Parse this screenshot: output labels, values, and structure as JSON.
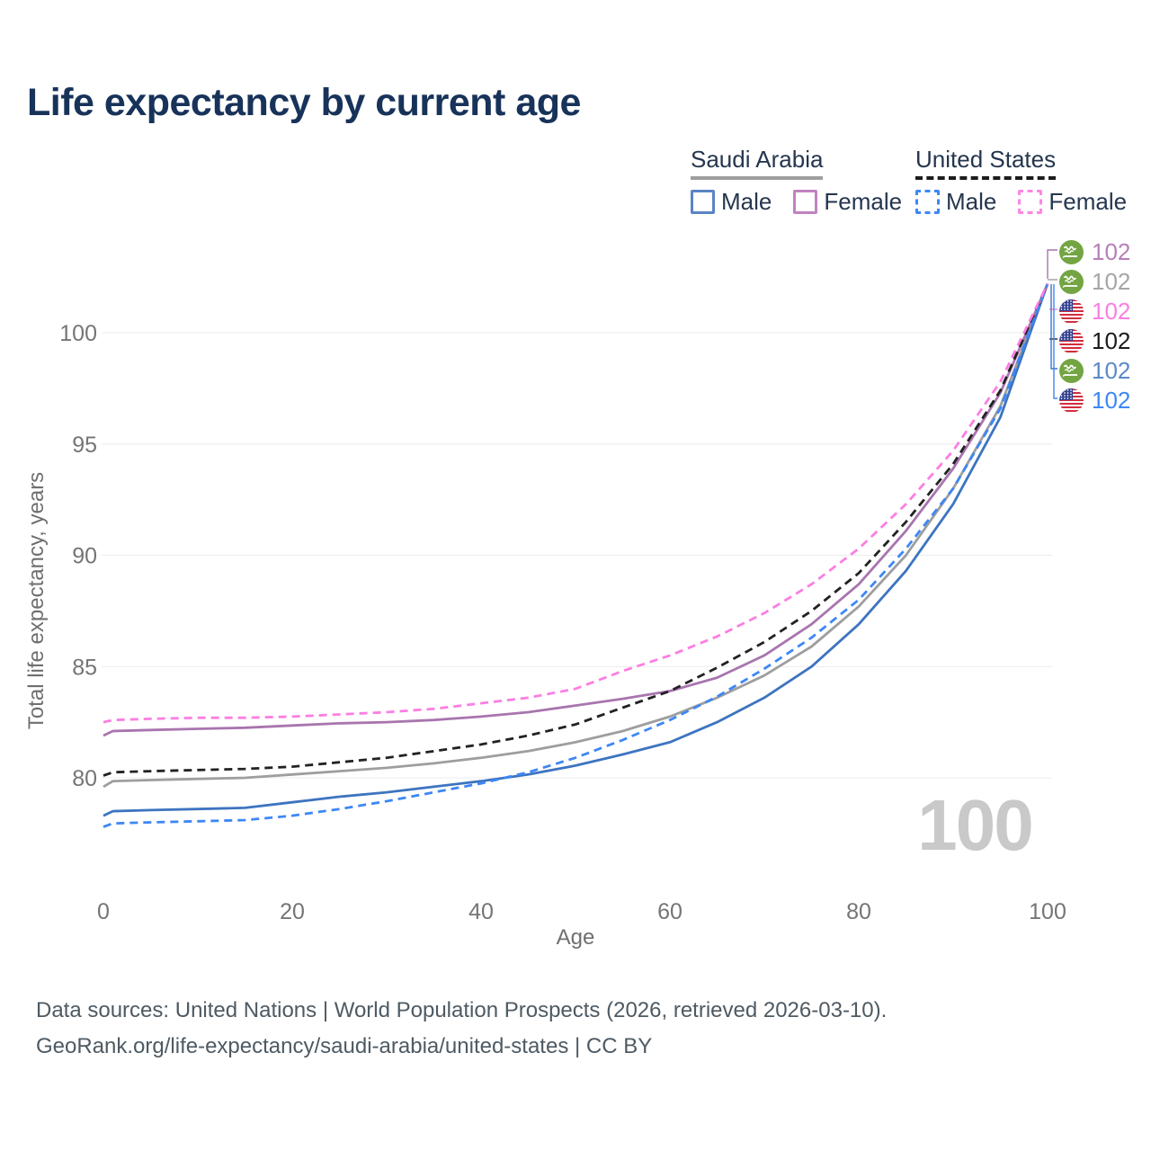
{
  "title": "Life expectancy by current age",
  "legend": {
    "groups": [
      {
        "label": "Saudi Arabia",
        "line_color": "#9e9e9e",
        "line_style": "solid",
        "items": [
          {
            "label": "Male",
            "color": "#5b84c4",
            "style": "solid"
          },
          {
            "label": "Female",
            "color": "#c083c0",
            "style": "solid"
          }
        ]
      },
      {
        "label": "United States",
        "line_color": "#1c1c1c",
        "line_style": "dashed",
        "items": [
          {
            "label": "Male",
            "color": "#3d87f5",
            "style": "dashed"
          },
          {
            "label": "Female",
            "color": "#fc87e2",
            "style": "dashed"
          }
        ]
      }
    ]
  },
  "chart_data": {
    "type": "line",
    "title": "Life expectancy by current age",
    "xlabel": "Age",
    "ylabel": "Total life expectancy, years",
    "x_ticks": [
      0,
      20,
      40,
      60,
      80,
      100
    ],
    "y_ticks": [
      80,
      85,
      90,
      95,
      100
    ],
    "xlim": [
      0,
      100
    ],
    "ylim": [
      77,
      103.5
    ],
    "grid": "horizontal",
    "age_indicator": "100",
    "ages": [
      0,
      1,
      5,
      10,
      15,
      20,
      25,
      30,
      35,
      40,
      45,
      50,
      55,
      60,
      65,
      70,
      75,
      80,
      85,
      90,
      95,
      100
    ],
    "series": [
      {
        "name": "Saudi Arabia Total",
        "key": "sa_total",
        "color": "#9e9e9e",
        "dashed": false,
        "values": [
          79.6,
          79.85,
          79.9,
          79.95,
          80.0,
          80.15,
          80.3,
          80.45,
          80.65,
          80.9,
          81.2,
          81.6,
          82.1,
          82.75,
          83.6,
          84.6,
          85.9,
          87.7,
          90.0,
          93.0,
          96.7,
          102.2
        ]
      },
      {
        "name": "Saudi Arabia Male",
        "key": "sa_male",
        "color": "#3d74c0",
        "dashed": false,
        "values": [
          78.3,
          78.5,
          78.55,
          78.6,
          78.65,
          78.9,
          79.15,
          79.35,
          79.6,
          79.85,
          80.15,
          80.55,
          81.05,
          81.6,
          82.5,
          83.6,
          85.0,
          86.9,
          89.3,
          92.3,
          96.2,
          102.2
        ]
      },
      {
        "name": "Saudi Arabia Female",
        "key": "sa_female",
        "color": "#a875ae",
        "dashed": false,
        "values": [
          81.9,
          82.1,
          82.15,
          82.2,
          82.25,
          82.35,
          82.45,
          82.5,
          82.6,
          82.75,
          82.95,
          83.25,
          83.55,
          83.9,
          84.5,
          85.5,
          86.9,
          88.7,
          91.1,
          93.9,
          97.3,
          102.2
        ]
      },
      {
        "name": "United States Total",
        "key": "us_total",
        "color": "#222222",
        "dashed": true,
        "values": [
          80.1,
          80.25,
          80.3,
          80.35,
          80.4,
          80.5,
          80.7,
          80.9,
          81.2,
          81.5,
          81.9,
          82.4,
          83.15,
          83.9,
          84.95,
          86.1,
          87.5,
          89.2,
          91.5,
          94.1,
          97.4,
          102.2
        ]
      },
      {
        "name": "United States Male",
        "key": "us_male",
        "color": "#3d87f5",
        "dashed": true,
        "values": [
          77.8,
          77.95,
          78.0,
          78.05,
          78.1,
          78.3,
          78.6,
          78.95,
          79.35,
          79.75,
          80.25,
          80.9,
          81.7,
          82.6,
          83.65,
          84.9,
          86.3,
          88.0,
          90.3,
          93.0,
          96.6,
          102.2
        ]
      },
      {
        "name": "United States Female",
        "key": "us_female",
        "color": "#fc7ee2",
        "dashed": true,
        "values": [
          82.5,
          82.6,
          82.65,
          82.7,
          82.7,
          82.75,
          82.85,
          82.95,
          83.1,
          83.35,
          83.6,
          84.0,
          84.8,
          85.5,
          86.35,
          87.4,
          88.7,
          90.3,
          92.3,
          94.7,
          97.8,
          102.2
        ]
      }
    ],
    "end_labels": [
      {
        "flag": "saudi-arabia",
        "value": "102",
        "color": "#b77fb9",
        "series": "sa_female"
      },
      {
        "flag": "saudi-arabia",
        "value": "102",
        "color": "#a6a6a6",
        "series": "sa_total"
      },
      {
        "flag": "united-states",
        "value": "102",
        "color": "#fc7ee2",
        "series": "us_female"
      },
      {
        "flag": "united-states",
        "value": "102",
        "color": "#1c1c1c",
        "series": "us_total"
      },
      {
        "flag": "saudi-arabia",
        "value": "102",
        "color": "#5b8ac6",
        "series": "sa_male"
      },
      {
        "flag": "united-states",
        "value": "102",
        "color": "#3d87f5",
        "series": "us_male"
      }
    ]
  },
  "footer": {
    "line1": "Data sources: United Nations | World Population Prospects (2026, retrieved 2026-03-10).",
    "line2": "GeoRank.org/life-expectancy/saudi-arabia/united-states | CC BY"
  }
}
